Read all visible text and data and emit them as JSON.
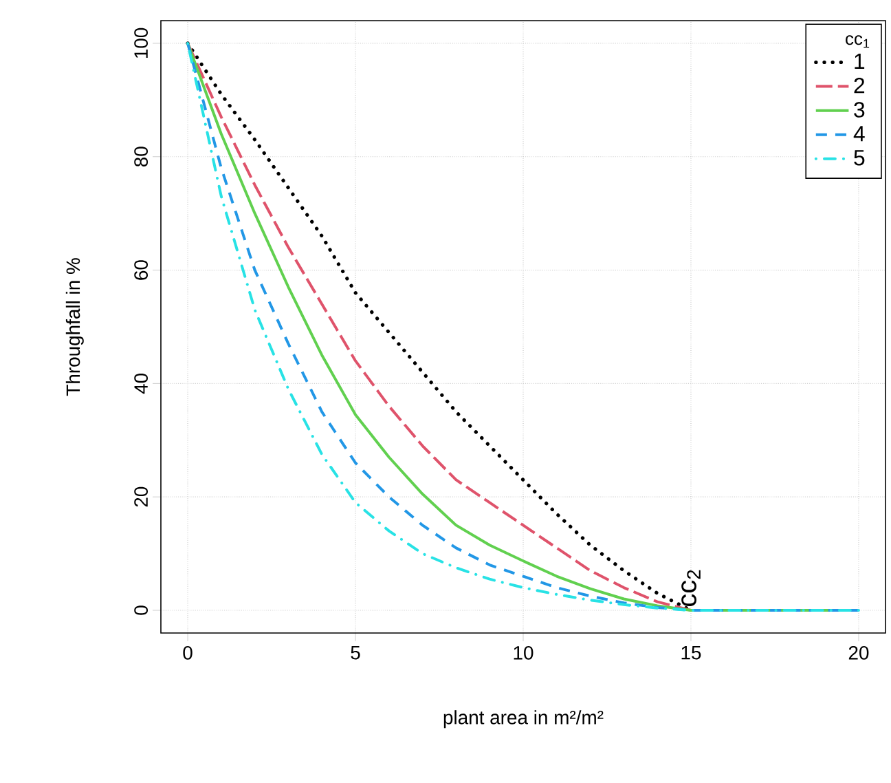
{
  "chart_data": {
    "type": "line",
    "xlabel": "plant area in m²/m²",
    "ylabel": "Throughfall in %",
    "legend_title": "cc$_{1}$",
    "x": [
      0,
      1,
      2,
      3,
      4,
      5,
      6,
      7,
      8,
      9,
      10,
      11,
      12,
      13,
      14,
      15,
      20
    ],
    "series": [
      {
        "name": "1",
        "color": "#000000",
        "line_style": "dotted",
        "values": [
          100,
          91,
          83,
          74.5,
          66,
          56,
          49,
          42,
          35,
          29,
          23,
          17,
          11.5,
          7,
          3,
          0,
          null
        ]
      },
      {
        "name": "2",
        "color": "#df536b",
        "line_style": "longdash",
        "values": [
          100,
          87,
          75,
          64,
          54,
          44,
          36,
          29,
          23,
          19,
          15,
          11,
          7,
          4,
          1.5,
          0,
          null
        ]
      },
      {
        "name": "3",
        "color": "#61d04f",
        "line_style": "solid",
        "values": [
          100,
          84,
          70,
          57,
          45,
          34.5,
          27,
          20.5,
          15,
          11.5,
          8.7,
          6,
          3.8,
          2,
          0.8,
          0,
          0
        ]
      },
      {
        "name": "4",
        "color": "#2297e6",
        "line_style": "dashed",
        "values": [
          100,
          78,
          60,
          47,
          35,
          26,
          20,
          15,
          11,
          8,
          6,
          4,
          2.5,
          1.3,
          0.5,
          0,
          0
        ]
      },
      {
        "name": "5",
        "color": "#28e2e5",
        "line_style": "dashdot",
        "values": [
          100,
          73,
          53,
          39,
          27.5,
          19,
          14,
          10,
          7.5,
          5.5,
          4,
          2.8,
          1.8,
          1,
          0.4,
          0,
          0
        ]
      }
    ],
    "annotations": [
      {
        "text": "cc$_{2}$",
        "x": 15,
        "y": 0
      }
    ],
    "xlim": [
      -0.8,
      20.8
    ],
    "ylim": [
      -4,
      104
    ],
    "xticks": [
      0,
      5,
      10,
      15,
      20
    ],
    "yticks": [
      0,
      20,
      40,
      60,
      80,
      100
    ],
    "grid": true,
    "legend": "top right"
  }
}
